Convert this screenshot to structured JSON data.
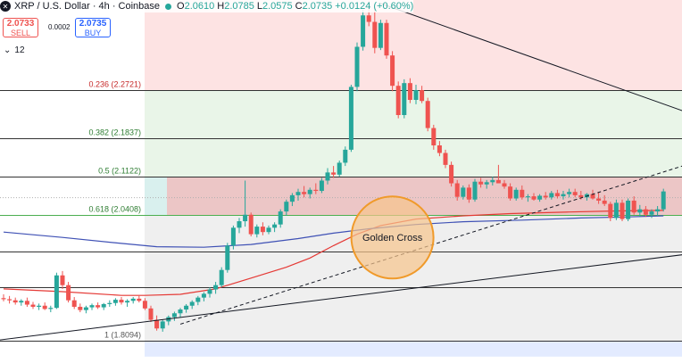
{
  "header": {
    "symbol_title": "XRP / U.S. Dollar · 4h · Coinbase",
    "o_label": "O",
    "o_value": "2.0610",
    "h_label": "H",
    "h_value": "2.0785",
    "l_label": "L",
    "l_value": "2.0575",
    "c_label": "C",
    "c_value": "2.0735",
    "change": "+0.0124 (+0.60%)"
  },
  "trade": {
    "sell_price": "2.0733",
    "sell_label": "SELL",
    "spread": "0.0002",
    "buy_price": "2.0735",
    "buy_label": "BUY"
  },
  "interval": {
    "value": "12"
  },
  "colors": {
    "up": "#26a69a",
    "down": "#ef5350",
    "ma_short": "#e53935",
    "ma_long": "#3f51b5",
    "annotation_fill": "#f6c48b",
    "annotation_stroke": "#f09a2a",
    "zone_red": "#fde3e3",
    "zone_green": "#e9f5e8",
    "zone_grey": "#efefef",
    "zone_blue": "#e3ebff"
  },
  "annotation": {
    "label": "Golden Cross"
  },
  "chart_data": {
    "type": "candlestick",
    "title": "XRP / U.S. Dollar · 4h · Coinbase",
    "xlabel": "",
    "ylabel": "",
    "ylim": [
      1.78,
      2.45
    ],
    "grid": false,
    "fib_levels": [
      {
        "level": "0.236",
        "price": 2.2721,
        "label": "0.236 (2.2721)"
      },
      {
        "level": "0.382",
        "price": 2.1837,
        "label": "0.382 (2.1837)"
      },
      {
        "level": "0.5",
        "price": 2.1122,
        "label": "0.5 (2.1122)"
      },
      {
        "level": "0.618",
        "price": 2.0408,
        "label": "0.618 (2.0408)"
      },
      {
        "level": "",
        "price": 1.9735,
        "label": ""
      },
      {
        "level": "",
        "price": 1.909,
        "label": ""
      },
      {
        "level": "1",
        "price": 1.8094,
        "label": "1 (1.8094)"
      }
    ],
    "zone_bands": [
      {
        "from": 2.2721,
        "to": 2.45,
        "color": "zone_red"
      },
      {
        "from": 2.1122,
        "to": 2.2721,
        "color": "zone_green"
      },
      {
        "from": 1.8094,
        "to": 2.0408,
        "color": "zone_grey"
      },
      {
        "from": 1.78,
        "to": 1.8094,
        "color": "zone_blue"
      }
    ],
    "candles": [
      [
        1.888,
        1.895,
        1.882,
        1.886
      ],
      [
        1.886,
        1.892,
        1.878,
        1.884
      ],
      [
        1.884,
        1.889,
        1.876,
        1.88
      ],
      [
        1.88,
        1.886,
        1.874,
        1.883
      ],
      [
        1.883,
        1.889,
        1.872,
        1.876
      ],
      [
        1.876,
        1.881,
        1.868,
        1.872
      ],
      [
        1.872,
        1.878,
        1.866,
        1.874
      ],
      [
        1.874,
        1.88,
        1.866,
        1.868
      ],
      [
        1.868,
        1.874,
        1.862,
        1.87
      ],
      [
        1.87,
        1.935,
        1.868,
        1.93
      ],
      [
        1.93,
        1.938,
        1.905,
        1.912
      ],
      [
        1.912,
        1.918,
        1.88,
        1.884
      ],
      [
        1.884,
        1.89,
        1.868,
        1.872
      ],
      [
        1.872,
        1.878,
        1.862,
        1.866
      ],
      [
        1.866,
        1.874,
        1.86,
        1.871
      ],
      [
        1.871,
        1.878,
        1.866,
        1.875
      ],
      [
        1.875,
        1.88,
        1.868,
        1.871
      ],
      [
        1.871,
        1.879,
        1.866,
        1.877
      ],
      [
        1.877,
        1.884,
        1.872,
        1.879
      ],
      [
        1.879,
        1.888,
        1.874,
        1.885
      ],
      [
        1.885,
        1.89,
        1.876,
        1.88
      ],
      [
        1.88,
        1.886,
        1.872,
        1.883
      ],
      [
        1.883,
        1.89,
        1.878,
        1.887
      ],
      [
        1.887,
        1.892,
        1.88,
        1.883
      ],
      [
        1.883,
        1.888,
        1.866,
        1.869
      ],
      [
        1.869,
        1.874,
        1.844,
        1.848
      ],
      [
        1.848,
        1.856,
        1.828,
        1.832
      ],
      [
        1.832,
        1.848,
        1.826,
        1.845
      ],
      [
        1.845,
        1.856,
        1.838,
        1.853
      ],
      [
        1.853,
        1.863,
        1.846,
        1.86
      ],
      [
        1.86,
        1.87,
        1.853,
        1.867
      ],
      [
        1.867,
        1.877,
        1.861,
        1.874
      ],
      [
        1.874,
        1.884,
        1.868,
        1.881
      ],
      [
        1.881,
        1.892,
        1.875,
        1.889
      ],
      [
        1.889,
        1.899,
        1.882,
        1.896
      ],
      [
        1.896,
        1.908,
        1.889,
        1.904
      ],
      [
        1.904,
        1.918,
        1.896,
        1.912
      ],
      [
        1.912,
        1.945,
        1.908,
        1.94
      ],
      [
        1.94,
        1.99,
        1.935,
        1.985
      ],
      [
        1.985,
        2.022,
        1.978,
        2.018
      ],
      [
        2.018,
        2.036,
        2.008,
        2.03
      ],
      [
        2.03,
        2.105,
        2.02,
        2.042
      ],
      [
        2.042,
        2.046,
        2.002,
        2.006
      ],
      [
        2.006,
        2.024,
        2.0,
        2.02
      ],
      [
        2.02,
        2.028,
        2.004,
        2.01
      ],
      [
        2.01,
        2.022,
        2.006,
        2.018
      ],
      [
        2.018,
        2.028,
        2.01,
        2.024
      ],
      [
        2.024,
        2.052,
        2.018,
        2.048
      ],
      [
        2.048,
        2.07,
        2.04,
        2.066
      ],
      [
        2.066,
        2.082,
        2.058,
        2.078
      ],
      [
        2.078,
        2.09,
        2.068,
        2.084
      ],
      [
        2.084,
        2.095,
        2.074,
        2.08
      ],
      [
        2.08,
        2.092,
        2.072,
        2.088
      ],
      [
        2.088,
        2.1,
        2.08,
        2.086
      ],
      [
        2.086,
        2.11,
        2.082,
        2.105
      ],
      [
        2.105,
        2.128,
        2.098,
        2.12
      ],
      [
        2.12,
        2.132,
        2.11,
        2.116
      ],
      [
        2.116,
        2.142,
        2.112,
        2.138
      ],
      [
        2.138,
        2.168,
        2.132,
        2.162
      ],
      [
        2.162,
        2.282,
        2.158,
        2.278
      ],
      [
        2.278,
        2.36,
        2.27,
        2.352
      ],
      [
        2.352,
        2.42,
        2.345,
        2.41
      ],
      [
        2.41,
        2.436,
        2.39,
        2.398
      ],
      [
        2.398,
        2.428,
        2.34,
        2.35
      ],
      [
        2.35,
        2.402,
        2.346,
        2.396
      ],
      [
        2.396,
        2.402,
        2.33,
        2.336
      ],
      [
        2.336,
        2.344,
        2.27,
        2.28
      ],
      [
        2.28,
        2.288,
        2.22,
        2.226
      ],
      [
        2.226,
        2.292,
        2.22,
        2.285
      ],
      [
        2.285,
        2.294,
        2.248,
        2.254
      ],
      [
        2.254,
        2.282,
        2.246,
        2.272
      ],
      [
        2.272,
        2.28,
        2.248,
        2.252
      ],
      [
        2.252,
        2.258,
        2.196,
        2.202
      ],
      [
        2.202,
        2.208,
        2.162,
        2.17
      ],
      [
        2.17,
        2.178,
        2.15,
        2.156
      ],
      [
        2.156,
        2.162,
        2.128,
        2.134
      ],
      [
        2.134,
        2.14,
        2.094,
        2.1
      ],
      [
        2.1,
        2.106,
        2.068,
        2.075
      ],
      [
        2.075,
        2.096,
        2.07,
        2.092
      ],
      [
        2.092,
        2.098,
        2.064,
        2.07
      ],
      [
        2.07,
        2.108,
        2.066,
        2.103
      ],
      [
        2.103,
        2.11,
        2.092,
        2.098
      ],
      [
        2.098,
        2.106,
        2.09,
        2.102
      ],
      [
        2.102,
        2.112,
        2.096,
        2.106
      ],
      [
        2.106,
        2.134,
        2.1,
        2.1
      ],
      [
        2.1,
        2.106,
        2.09,
        2.094
      ],
      [
        2.094,
        2.1,
        2.068,
        2.072
      ],
      [
        2.072,
        2.092,
        2.068,
        2.088
      ],
      [
        2.088,
        2.096,
        2.07,
        2.074
      ],
      [
        2.074,
        2.08,
        2.066,
        2.076
      ],
      [
        2.076,
        2.082,
        2.068,
        2.07
      ],
      [
        2.07,
        2.08,
        2.066,
        2.077
      ],
      [
        2.077,
        2.084,
        2.07,
        2.074
      ],
      [
        2.074,
        2.086,
        2.07,
        2.082
      ],
      [
        2.082,
        2.088,
        2.072,
        2.076
      ],
      [
        2.076,
        2.086,
        2.07,
        2.08
      ],
      [
        2.08,
        2.09,
        2.074,
        2.084
      ],
      [
        2.084,
        2.09,
        2.074,
        2.078
      ],
      [
        2.078,
        2.086,
        2.07,
        2.074
      ],
      [
        2.074,
        2.082,
        2.068,
        2.08
      ],
      [
        2.08,
        2.088,
        2.07,
        2.072
      ],
      [
        2.072,
        2.084,
        2.062,
        2.068
      ],
      [
        2.068,
        2.078,
        2.058,
        2.062
      ],
      [
        2.062,
        2.066,
        2.03,
        2.036
      ],
      [
        2.036,
        2.07,
        2.032,
        2.064
      ],
      [
        2.064,
        2.07,
        2.03,
        2.034
      ],
      [
        2.034,
        2.072,
        2.03,
        2.068
      ],
      [
        2.068,
        2.076,
        2.042,
        2.046
      ],
      [
        2.046,
        2.06,
        2.038,
        2.052
      ],
      [
        2.052,
        2.058,
        2.038,
        2.042
      ],
      [
        2.042,
        2.052,
        2.036,
        2.048
      ],
      [
        2.048,
        2.058,
        2.04,
        2.052
      ],
      [
        2.052,
        2.09,
        2.048,
        2.085
      ]
    ],
    "series": [
      {
        "points": [
          [
            0,
            1.905
          ],
          [
            10,
            1.9
          ],
          [
            20,
            1.893
          ],
          [
            24,
            1.893
          ],
          [
            30,
            1.895
          ],
          [
            36,
            1.905
          ],
          [
            42,
            1.925
          ],
          [
            48,
            1.945
          ],
          [
            52,
            1.962
          ],
          [
            56,
            1.985
          ],
          [
            60,
            2.006
          ],
          [
            64,
            2.022
          ],
          [
            70,
            2.034
          ],
          [
            78,
            2.04
          ],
          [
            86,
            2.044
          ],
          [
            96,
            2.047
          ],
          [
            104,
            2.049
          ],
          [
            112,
            2.05
          ]
        ]
      },
      {
        "points": [
          [
            0,
            2.01
          ],
          [
            10,
            2.0
          ],
          [
            20,
            1.989
          ],
          [
            26,
            1.983
          ],
          [
            34,
            1.982
          ],
          [
            42,
            1.987
          ],
          [
            50,
            1.998
          ],
          [
            56,
            2.008
          ],
          [
            62,
            2.016
          ],
          [
            70,
            2.024
          ],
          [
            78,
            2.029
          ],
          [
            88,
            2.032
          ],
          [
            98,
            2.036
          ],
          [
            106,
            2.038
          ],
          [
            112,
            2.04
          ]
        ]
      }
    ],
    "trendlines": [
      {
        "style": "solid",
        "from": [
          -16,
          1.79
        ],
        "to": [
          124,
          1.98
        ]
      },
      {
        "style": "solid",
        "from": [
          64,
          2.432
        ],
        "to": [
          124,
          2.2
        ]
      },
      {
        "style": "dashed",
        "from": [
          30,
          1.84
        ],
        "to": [
          124,
          2.162
        ]
      }
    ],
    "annotation_circle": {
      "x": 66,
      "price": 2.0
    }
  }
}
